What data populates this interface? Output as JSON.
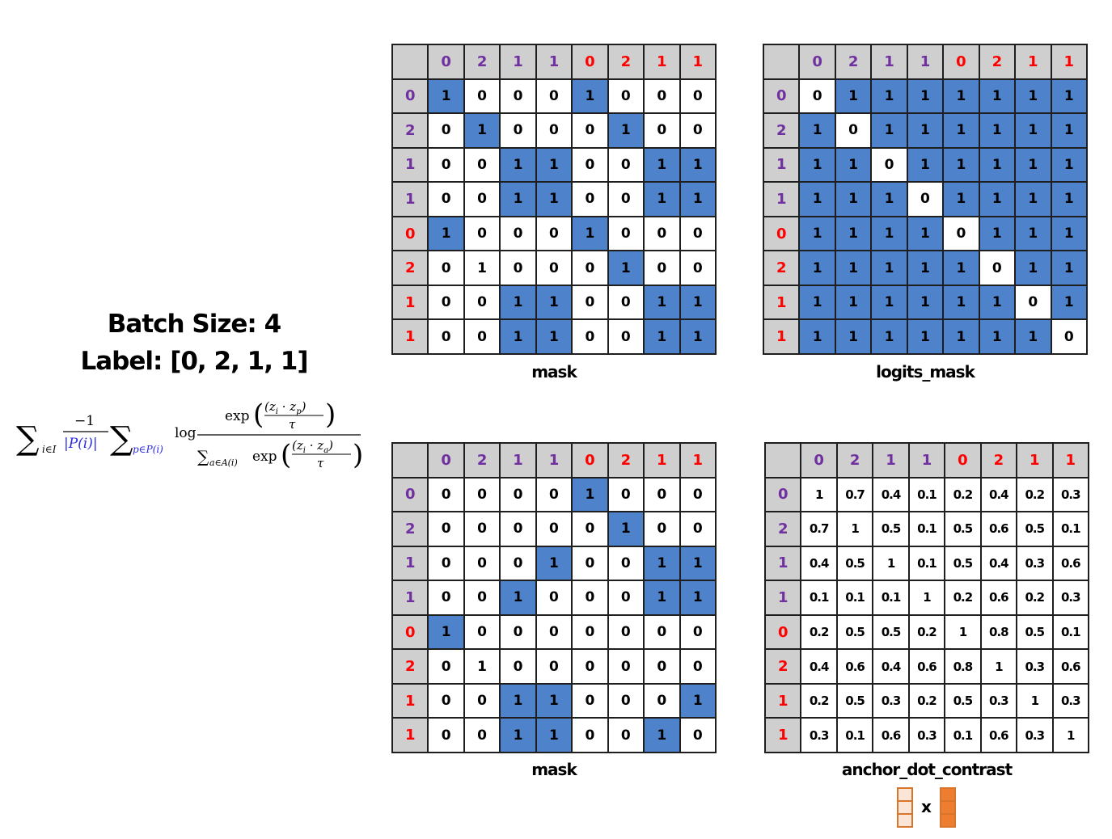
{
  "info": {
    "batch_line": "Batch Size: 4",
    "label_line": "Label: [0, 2, 1, 1]"
  },
  "formula": {
    "sum_i": "∑",
    "sub_i": "i∈I",
    "minus_one": "−1",
    "p_set": "|P(i)|",
    "sum_p": "∑",
    "sub_p": "p∈P(i)",
    "log": "log",
    "num_exp": "exp",
    "num_dot": "(z",
    "num_i": "i",
    "num_mid": " · z",
    "num_p": "p",
    "num_close": ")",
    "tau_num": "τ",
    "den_sum": "∑",
    "den_sub": "a∈A(i)",
    "den_exp": "exp",
    "den_dot": "(z",
    "den_i": "i",
    "den_mid": " · z",
    "den_a": "a",
    "den_close": ")",
    "tau_den": "τ"
  },
  "colors": {
    "label_0": "#7030a0",
    "label_2": "#7030a0",
    "label_1": "#7030a0",
    "label_red": "#ff0000",
    "highlight": "#4e83cc",
    "header": "#d0cfcf",
    "vector_orange": "#ed7d31",
    "vector_light": "#fbe5d6"
  },
  "labels": {
    "values": [
      "0",
      "2",
      "1",
      "1",
      "0",
      "2",
      "1",
      "1"
    ],
    "colors": [
      "#7030a0",
      "#7030a0",
      "#7030a0",
      "#7030a0",
      "#ff0000",
      "#ff0000",
      "#ff0000",
      "#ff0000"
    ]
  },
  "matrices": [
    {
      "caption": "mask",
      "cells": [
        [
          "1",
          "0",
          "0",
          "0",
          "1",
          "0",
          "0",
          "0"
        ],
        [
          "0",
          "1",
          "0",
          "0",
          "0",
          "1",
          "0",
          "0"
        ],
        [
          "0",
          "0",
          "1",
          "1",
          "0",
          "0",
          "1",
          "1"
        ],
        [
          "0",
          "0",
          "1",
          "1",
          "0",
          "0",
          "1",
          "1"
        ],
        [
          "1",
          "0",
          "0",
          "0",
          "1",
          "0",
          "0",
          "0"
        ],
        [
          "0",
          "1",
          "0",
          "0",
          "0",
          "1",
          "0",
          "0"
        ],
        [
          "0",
          "0",
          "1",
          "1",
          "0",
          "0",
          "1",
          "1"
        ],
        [
          "0",
          "0",
          "1",
          "1",
          "0",
          "0",
          "1",
          "1"
        ]
      ],
      "highlight": [
        [
          1,
          0,
          0,
          0,
          1,
          0,
          0,
          0
        ],
        [
          0,
          1,
          0,
          0,
          0,
          1,
          0,
          0
        ],
        [
          0,
          0,
          1,
          1,
          0,
          0,
          1,
          1
        ],
        [
          0,
          0,
          1,
          1,
          0,
          0,
          1,
          1
        ],
        [
          1,
          0,
          0,
          0,
          1,
          0,
          0,
          0
        ],
        [
          0,
          0,
          0,
          0,
          0,
          1,
          0,
          0
        ],
        [
          0,
          0,
          1,
          1,
          0,
          0,
          1,
          1
        ],
        [
          0,
          0,
          1,
          1,
          0,
          0,
          1,
          1
        ]
      ]
    },
    {
      "caption": "logits_mask",
      "cells": [
        [
          "0",
          "1",
          "1",
          "1",
          "1",
          "1",
          "1",
          "1"
        ],
        [
          "1",
          "0",
          "1",
          "1",
          "1",
          "1",
          "1",
          "1"
        ],
        [
          "1",
          "1",
          "0",
          "1",
          "1",
          "1",
          "1",
          "1"
        ],
        [
          "1",
          "1",
          "1",
          "0",
          "1",
          "1",
          "1",
          "1"
        ],
        [
          "1",
          "1",
          "1",
          "1",
          "0",
          "1",
          "1",
          "1"
        ],
        [
          "1",
          "1",
          "1",
          "1",
          "1",
          "0",
          "1",
          "1"
        ],
        [
          "1",
          "1",
          "1",
          "1",
          "1",
          "1",
          "0",
          "1"
        ],
        [
          "1",
          "1",
          "1",
          "1",
          "1",
          "1",
          "1",
          "0"
        ]
      ],
      "highlight": [
        [
          0,
          1,
          1,
          1,
          1,
          1,
          1,
          1
        ],
        [
          1,
          0,
          1,
          1,
          1,
          1,
          1,
          1
        ],
        [
          1,
          1,
          0,
          1,
          1,
          1,
          1,
          1
        ],
        [
          1,
          1,
          1,
          0,
          1,
          1,
          1,
          1
        ],
        [
          1,
          1,
          1,
          1,
          0,
          1,
          1,
          1
        ],
        [
          1,
          1,
          1,
          1,
          1,
          0,
          1,
          1
        ],
        [
          1,
          1,
          1,
          1,
          1,
          1,
          0,
          1
        ],
        [
          1,
          1,
          1,
          1,
          1,
          1,
          1,
          0
        ]
      ]
    },
    {
      "caption": "mask",
      "cells": [
        [
          "0",
          "0",
          "0",
          "0",
          "1",
          "0",
          "0",
          "0"
        ],
        [
          "0",
          "0",
          "0",
          "0",
          "0",
          "1",
          "0",
          "0"
        ],
        [
          "0",
          "0",
          "0",
          "1",
          "0",
          "0",
          "1",
          "1"
        ],
        [
          "0",
          "0",
          "1",
          "0",
          "0",
          "0",
          "1",
          "1"
        ],
        [
          "1",
          "0",
          "0",
          "0",
          "0",
          "0",
          "0",
          "0"
        ],
        [
          "0",
          "1",
          "0",
          "0",
          "0",
          "0",
          "0",
          "0"
        ],
        [
          "0",
          "0",
          "1",
          "1",
          "0",
          "0",
          "0",
          "1"
        ],
        [
          "0",
          "0",
          "1",
          "1",
          "0",
          "0",
          "1",
          "0"
        ]
      ],
      "highlight": [
        [
          0,
          0,
          0,
          0,
          1,
          0,
          0,
          0
        ],
        [
          0,
          0,
          0,
          0,
          0,
          1,
          0,
          0
        ],
        [
          0,
          0,
          0,
          1,
          0,
          0,
          1,
          1
        ],
        [
          0,
          0,
          1,
          0,
          0,
          0,
          1,
          1
        ],
        [
          1,
          0,
          0,
          0,
          0,
          0,
          0,
          0
        ],
        [
          0,
          0,
          0,
          0,
          0,
          0,
          0,
          0
        ],
        [
          0,
          0,
          1,
          1,
          0,
          0,
          0,
          1
        ],
        [
          0,
          0,
          1,
          1,
          0,
          0,
          1,
          0
        ]
      ]
    },
    {
      "caption": "anchor_dot_contrast",
      "cells": [
        [
          "1",
          "0.7",
          "0.4",
          "0.1",
          "0.2",
          "0.4",
          "0.2",
          "0.3"
        ],
        [
          "0.7",
          "1",
          "0.5",
          "0.1",
          "0.5",
          "0.6",
          "0.5",
          "0.1"
        ],
        [
          "0.4",
          "0.5",
          "1",
          "0.1",
          "0.5",
          "0.4",
          "0.3",
          "0.6"
        ],
        [
          "0.1",
          "0.1",
          "0.1",
          "1",
          "0.2",
          "0.6",
          "0.2",
          "0.3"
        ],
        [
          "0.2",
          "0.5",
          "0.5",
          "0.2",
          "1",
          "0.8",
          "0.5",
          "0.1"
        ],
        [
          "0.4",
          "0.6",
          "0.4",
          "0.6",
          "0.8",
          "1",
          "0.3",
          "0.6"
        ],
        [
          "0.2",
          "0.5",
          "0.3",
          "0.2",
          "0.5",
          "0.3",
          "1",
          "0.3"
        ],
        [
          "0.3",
          "0.1",
          "0.6",
          "0.3",
          "0.1",
          "0.6",
          "0.3",
          "1"
        ]
      ],
      "highlight": [
        [
          0,
          0,
          0,
          0,
          0,
          0,
          0,
          0
        ],
        [
          0,
          0,
          0,
          0,
          0,
          0,
          0,
          0
        ],
        [
          0,
          0,
          0,
          0,
          0,
          0,
          0,
          0
        ],
        [
          0,
          0,
          0,
          0,
          0,
          0,
          0,
          0
        ],
        [
          0,
          0,
          0,
          0,
          0,
          0,
          0,
          0
        ],
        [
          0,
          0,
          0,
          0,
          0,
          0,
          0,
          0
        ],
        [
          0,
          0,
          0,
          0,
          0,
          0,
          0,
          0
        ],
        [
          0,
          0,
          0,
          0,
          0,
          0,
          0,
          0
        ]
      ]
    }
  ],
  "vector_op": "x"
}
